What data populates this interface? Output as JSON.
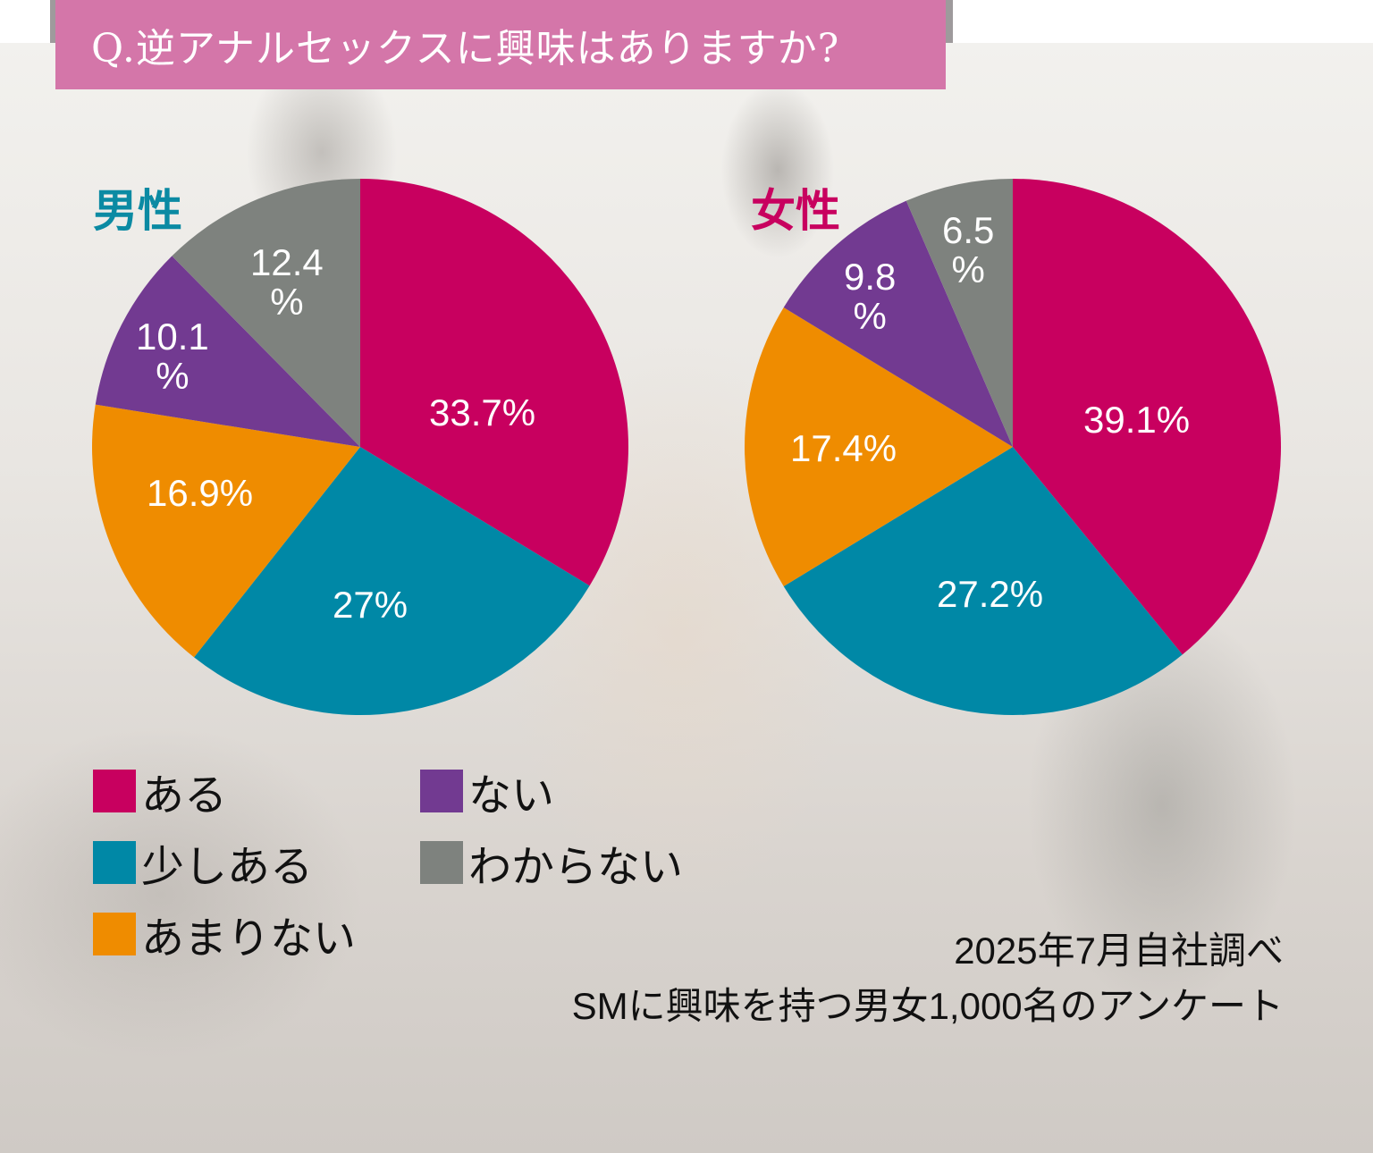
{
  "title": "Q.逆アナルセックスに興味はありますか?",
  "colors": {
    "title_bar": "#d476a9",
    "aru": "#c8005f",
    "sukoshi_aru": "#0088a6",
    "amari_nai": "#ef8c00",
    "nai": "#723a91",
    "wakaranai": "#7e827e",
    "male_label": "#0b8aa3",
    "female_label": "#c8005f"
  },
  "male": {
    "label": "男性",
    "slices": [
      {
        "name": "ある",
        "value": 33.7,
        "label": "33.7%"
      },
      {
        "name": "少しある",
        "value": 27,
        "label": "27%"
      },
      {
        "name": "あまりない",
        "value": 16.9,
        "label": "16.9%"
      },
      {
        "name": "ない",
        "value": 10.1,
        "label_line1": "10.1",
        "label_line2": "%"
      },
      {
        "name": "わからない",
        "value": 12.4,
        "label_line1": "12.4",
        "label_line2": "%"
      }
    ]
  },
  "female": {
    "label": "女性",
    "slices": [
      {
        "name": "ある",
        "value": 39.1,
        "label": "39.1%"
      },
      {
        "name": "少しある",
        "value": 27.2,
        "label": "27.2%"
      },
      {
        "name": "あまりない",
        "value": 17.4,
        "label": "17.4%"
      },
      {
        "name": "ない",
        "value": 9.8,
        "label_line1": "9.8",
        "label_line2": "%"
      },
      {
        "name": "わからない",
        "value": 6.5,
        "label_line1": "6.5",
        "label_line2": "%"
      }
    ]
  },
  "legend": {
    "items": [
      {
        "label": "ある"
      },
      {
        "label": "少しある"
      },
      {
        "label": "あまりない"
      },
      {
        "label": "ない"
      },
      {
        "label": "わからない"
      }
    ]
  },
  "footnote": {
    "line1": "2025年7月自社調べ",
    "line2": "SMに興味を持つ男女1,000名のアンケート"
  },
  "chart_data": [
    {
      "type": "pie",
      "title": "男性",
      "categories": [
        "ある",
        "少しある",
        "あまりない",
        "ない",
        "わからない"
      ],
      "values": [
        33.7,
        27,
        16.9,
        10.1,
        12.4
      ],
      "unit": "%",
      "colors": [
        "#c8005f",
        "#0088a6",
        "#ef8c00",
        "#723a91",
        "#7e827e"
      ],
      "start_angle": "12 o'clock, clockwise",
      "legend_position": "bottom-left"
    },
    {
      "type": "pie",
      "title": "女性",
      "categories": [
        "ある",
        "少しある",
        "あまりない",
        "ない",
        "わからない"
      ],
      "values": [
        39.1,
        27.2,
        17.4,
        9.8,
        6.5
      ],
      "unit": "%",
      "colors": [
        "#c8005f",
        "#0088a6",
        "#ef8c00",
        "#723a91",
        "#7e827e"
      ],
      "start_angle": "12 o'clock, clockwise",
      "legend_position": "bottom-left"
    }
  ]
}
